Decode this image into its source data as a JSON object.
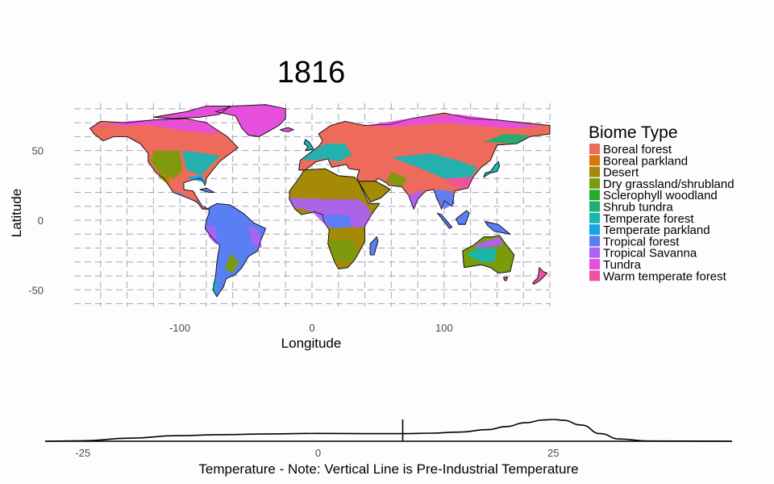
{
  "chart_data": [
    {
      "type": "map",
      "title": "1816",
      "xlabel": "Longitude",
      "ylabel": "Latitude",
      "xlim": [
        -180,
        180
      ],
      "ylim": [
        -62,
        84
      ],
      "x_ticks": [
        -100,
        0,
        100
      ],
      "y_ticks": [
        -50,
        0,
        50
      ],
      "grid": true,
      "grid_style": "dashed",
      "legend_title": "Biome Type",
      "legend_position": "right",
      "legend": [
        {
          "label": "Boreal forest",
          "color": "#ee6a5a"
        },
        {
          "label": "Boreal parkland",
          "color": "#d8740a"
        },
        {
          "label": "Desert",
          "color": "#a48a06"
        },
        {
          "label": "Dry grassland/shrubland",
          "color": "#7a9b0c"
        },
        {
          "label": "Sclerophyll woodland",
          "color": "#24ad28"
        },
        {
          "label": "Shrub tundra",
          "color": "#1fae72"
        },
        {
          "label": "Temperate forest",
          "color": "#18b5b2"
        },
        {
          "label": "Temperate parkland",
          "color": "#14a6e2"
        },
        {
          "label": "Tropical forest",
          "color": "#5a7ff5"
        },
        {
          "label": "Tropical Savanna",
          "color": "#ad62f2"
        },
        {
          "label": "Tundra",
          "color": "#e64fdd"
        },
        {
          "label": "Warm temperate forest",
          "color": "#f0509e"
        }
      ]
    },
    {
      "type": "density",
      "xlabel": "Temperature - Note: Vertical Line is Pre-Industrial Temperature",
      "x_ticks": [
        -25,
        0,
        25
      ],
      "xlim": [
        -29,
        44
      ],
      "vline": 9,
      "line_color": "#000000",
      "x": [
        -29,
        -25,
        -20,
        -15,
        -10,
        -5,
        0,
        5,
        9,
        12,
        15,
        18,
        20,
        22,
        24,
        25,
        26,
        28,
        30,
        32,
        35,
        44
      ],
      "density": [
        0,
        0.002,
        0.012,
        0.022,
        0.026,
        0.029,
        0.031,
        0.03,
        0.03,
        0.032,
        0.036,
        0.046,
        0.058,
        0.073,
        0.084,
        0.086,
        0.083,
        0.064,
        0.03,
        0.009,
        0.001,
        0
      ]
    }
  ]
}
